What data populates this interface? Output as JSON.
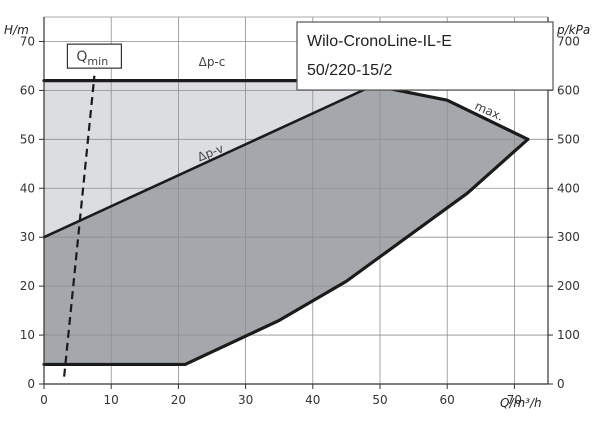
{
  "chart_data": {
    "type": "area",
    "title": [
      "Wilo-CronoLine-IL-E",
      "50/220-15/2"
    ],
    "xlabel": "Q/m³/h",
    "ylabel_left": "H/m",
    "ylabel_right": "p/kPa",
    "xlim": [
      0,
      75
    ],
    "ylim": [
      0,
      75
    ],
    "ylim_right": [
      0,
      750
    ],
    "xticks": [
      0,
      10,
      20,
      30,
      40,
      50,
      60,
      70
    ],
    "yticks_left": [
      0,
      10,
      20,
      30,
      40,
      50,
      60,
      70
    ],
    "yticks_right": [
      0,
      100,
      200,
      300,
      400,
      500,
      600,
      700
    ],
    "grid": true,
    "regions": [
      {
        "name": "Δp-c",
        "fill": "#dcdde0",
        "points": [
          [
            0,
            4
          ],
          [
            0,
            62
          ],
          [
            45,
            62
          ],
          [
            49,
            61
          ],
          [
            0,
            30
          ]
        ]
      },
      {
        "name": "Δp-v",
        "fill": "#a4a7ab",
        "points": [
          [
            0,
            4
          ],
          [
            0,
            30
          ],
          [
            49,
            61
          ],
          [
            60,
            58
          ],
          [
            72,
            50
          ],
          [
            63,
            39
          ],
          [
            55,
            31
          ],
          [
            45,
            21
          ],
          [
            35,
            13
          ],
          [
            28,
            8.5
          ],
          [
            21,
            4
          ]
        ]
      }
    ],
    "series": [
      {
        "name": "max.",
        "x": [
          0,
          45,
          49,
          60,
          72
        ],
        "y": [
          62,
          62,
          61,
          58,
          50
        ]
      },
      {
        "name": "",
        "x": [
          72,
          63,
          55,
          45,
          35,
          28,
          21,
          0
        ],
        "y": [
          50,
          39,
          31,
          21,
          13,
          8.5,
          4,
          4
        ]
      },
      {
        "name": "Δp-v",
        "x": [
          0,
          49
        ],
        "y": [
          30,
          61
        ]
      },
      {
        "name": "Qmin",
        "x": [
          3,
          7.5
        ],
        "y": [
          1.5,
          63
        ],
        "style": "dashed"
      }
    ],
    "annotations": [
      {
        "text": "Δp-c",
        "x": 25,
        "y": 65
      },
      {
        "text": "Δp-v",
        "x": 25,
        "y": 46.5
      },
      {
        "text": "max.",
        "x": 66,
        "y": 55
      },
      {
        "text_main": "Q",
        "text_sub": "min",
        "x": 7.5,
        "y": 67
      }
    ]
  }
}
